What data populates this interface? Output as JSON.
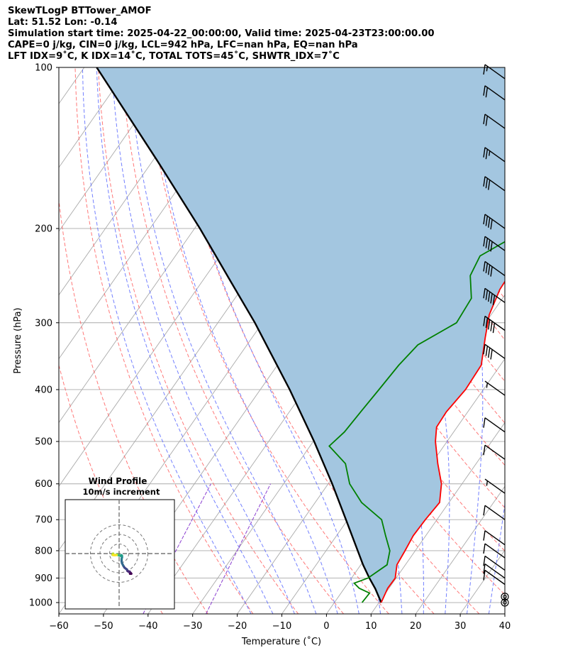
{
  "header": {
    "line1": "SkewTLogP BTTower_AMOF",
    "line2": "Lat: 51.52   Lon: -0.14",
    "line3": "Simulation start time: 2025-04-22_00:00:00, Valid time: 2025-04-23T23:00:00.00",
    "line4": "CAPE=0 j/kg, CIN=0 j/kg, LCL=942 hPa, LFC=nan hPa, EQ=nan hPa",
    "line5": "LFT IDX=9˚C, K IDX=14˚C, TOTAL TOTS=45˚C, SHWTR_IDX=7˚C"
  },
  "colors": {
    "temperature": "#ff0000",
    "dewpoint": "#008000",
    "parcel": "#000000",
    "cape_fill": "#a3c6e0",
    "dry_adiabat": "#ff6060",
    "moist_adiabat": "#5a6aff",
    "mixing_ratio": "#8b3fd0",
    "isotherm": "#aaaaaa"
  },
  "chart_data": [
    {
      "type": "line",
      "subtype": "skew-T log-P diagram",
      "title": "",
      "xlabel": "Temperature (˚C)",
      "ylabel": "Pressure (hPa)",
      "xlim": [
        -60,
        40
      ],
      "ylim": [
        1050,
        100
      ],
      "y_scale": "log",
      "x_ticks": [
        -60,
        -50,
        -40,
        -30,
        -20,
        -10,
        0,
        10,
        20,
        30,
        40
      ],
      "x_tick_labels": [
        "−60",
        "−50",
        "−40",
        "−30",
        "−20",
        "−10",
        "0",
        "10",
        "20",
        "30",
        "40"
      ],
      "y_ticks": [
        100,
        200,
        300,
        400,
        500,
        600,
        700,
        800,
        900,
        1000
      ],
      "y_tick_labels": [
        "100",
        "200",
        "300",
        "400",
        "500",
        "600",
        "700",
        "800",
        "900",
        "1000"
      ],
      "grid": true,
      "series": [
        {
          "role": "temperature",
          "pressure": [
            1000,
            940,
            900,
            850,
            800,
            750,
            700,
            650,
            600,
            550,
            500,
            470,
            440,
            400,
            360,
            320,
            290,
            260,
            230,
            210,
            190,
            170,
            155,
            140,
            125,
            115,
            100
          ],
          "temperature": [
            10.5,
            9.7,
            9.8,
            8.1,
            7.7,
            7.2,
            7.4,
            7.9,
            5.4,
            1.4,
            -2.6,
            -4.6,
            -4.8,
            -4.0,
            -4.3,
            -7.7,
            -10.4,
            -12.0,
            -12.4,
            -12.3,
            -10.0,
            -9.0,
            -9.8,
            -11.0,
            -12.0,
            -13.6,
            -15.4
          ]
        },
        {
          "role": "dewpoint",
          "pressure": [
            1000,
            960,
            940,
            920,
            900,
            850,
            800,
            750,
            700,
            650,
            600,
            550,
            510,
            480,
            440,
            400,
            360,
            330,
            300,
            270,
            245,
            225,
            205,
            185,
            170,
            155,
            140,
            125,
            110,
            100
          ],
          "dewpoint": [
            6.2,
            6.4,
            3.3,
            1.4,
            3.7,
            5.9,
            4.3,
            1.0,
            -2.4,
            -9.6,
            -15.2,
            -19.3,
            -25.7,
            -24.5,
            -24.0,
            -23.4,
            -22.8,
            -21.7,
            -16.5,
            -17.0,
            -20.8,
            -21.7,
            -16.6,
            -20.3,
            -22.6,
            -23.9,
            -23.9,
            -25.4,
            -26.6,
            -27.9
          ]
        },
        {
          "role": "parcel",
          "pressure": [
            1000,
            942,
            900,
            850,
            800,
            700,
            600,
            500,
            400,
            300,
            250,
            200,
            150,
            100
          ],
          "temperature": [
            10.5,
            7.0,
            4.0,
            0.5,
            -2.9,
            -10.4,
            -19.1,
            -29.8,
            -43.4,
            -61.7,
            -73.9,
            -88.8,
            -108.7,
            -137.2
          ]
        }
      ],
      "wind_barbs": [
        {
          "pressure": 1000,
          "speed_kt": 0
        },
        {
          "pressure": 975,
          "speed_kt": 0
        },
        {
          "pressure": 925,
          "speed_kt": 10
        },
        {
          "pressure": 900,
          "speed_kt": 10
        },
        {
          "pressure": 870,
          "speed_kt": 10
        },
        {
          "pressure": 825,
          "speed_kt": 10
        },
        {
          "pressure": 780,
          "speed_kt": 10
        },
        {
          "pressure": 700,
          "speed_kt": 10
        },
        {
          "pressure": 625,
          "speed_kt": 5
        },
        {
          "pressure": 540,
          "speed_kt": 10
        },
        {
          "pressure": 480,
          "speed_kt": 10
        },
        {
          "pressure": 410,
          "speed_kt": 5
        },
        {
          "pressure": 350,
          "speed_kt": 40
        },
        {
          "pressure": 310,
          "speed_kt": 50
        },
        {
          "pressure": 275,
          "speed_kt": 50
        },
        {
          "pressure": 245,
          "speed_kt": 40
        },
        {
          "pressure": 220,
          "speed_kt": 40
        },
        {
          "pressure": 200,
          "speed_kt": 40
        },
        {
          "pressure": 170,
          "speed_kt": 30
        },
        {
          "pressure": 150,
          "speed_kt": 25
        },
        {
          "pressure": 130,
          "speed_kt": 20
        },
        {
          "pressure": 115,
          "speed_kt": 20
        },
        {
          "pressure": 105,
          "speed_kt": 15
        }
      ]
    },
    {
      "type": "line",
      "subtype": "hodograph",
      "title": "Wind Profile",
      "subtitle": "10m/s increment",
      "ring_increment_ms": 10,
      "rings": [
        10,
        20,
        30
      ],
      "colormap": "viridis",
      "series": [
        {
          "u": [
            12.0,
            12.7,
            11.4,
            11.0,
            9.7,
            8.6,
            8.2,
            7.3,
            5.6,
            4.2,
            3.0,
            2.6,
            2.6,
            3.0,
            3.0,
            2.3,
            1.3,
            0.0,
            -1.1,
            -1.6,
            -2.0,
            -3.1,
            -4.5,
            -6.3,
            -6.3,
            -7.0,
            -6.3,
            -4.0,
            -2.7
          ],
          "v": [
            -20.0,
            -21.0,
            -21.0,
            -18.8,
            -18.8,
            -18.0,
            -16.6,
            -16.0,
            -14.6,
            -12.4,
            -10.0,
            -8.0,
            -5.6,
            -3.9,
            -2.4,
            -1.6,
            -2.3,
            -2.0,
            -1.6,
            -1.2,
            -0.8,
            -1.2,
            -1.6,
            -0.8,
            0.0,
            -1.2,
            -1.6,
            -1.6,
            -1.6
          ]
        }
      ]
    }
  ]
}
